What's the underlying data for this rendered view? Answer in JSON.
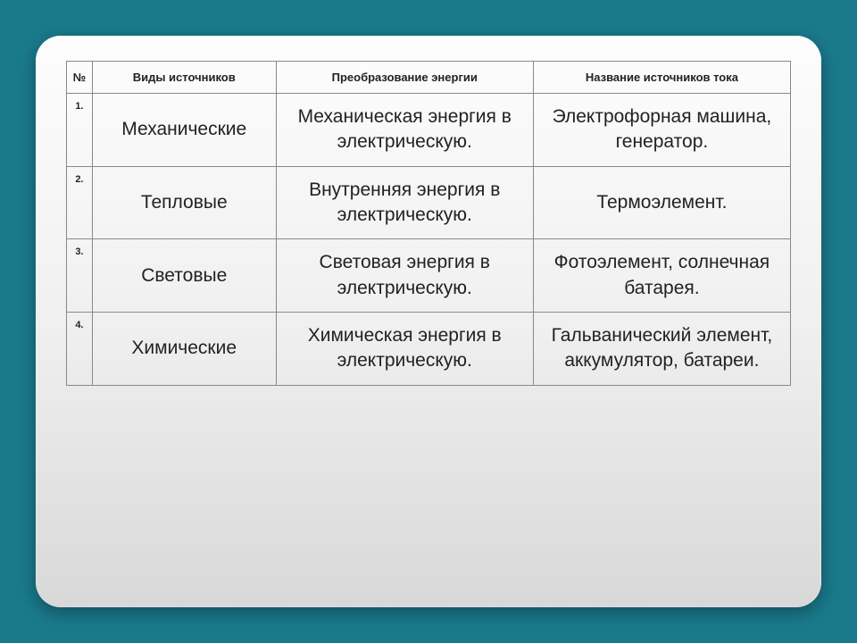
{
  "table": {
    "headers": {
      "num": "№",
      "type": "Виды источников",
      "conversion": "Преобразование энергии",
      "name": "Название источников тока"
    },
    "rows": [
      {
        "num": "1.",
        "type": "Механические",
        "conversion": "Механическая энергия в электрическую.",
        "name": "Электрофорная машина, генератор."
      },
      {
        "num": "2.",
        "type": "Тепловые",
        "conversion": "Внутренняя энергия в электрическую.",
        "name": "Термоэлемент."
      },
      {
        "num": "3.",
        "type": "Световые",
        "conversion": "Световая энергия в электрическую.",
        "name": "Фотоэлемент, солнечная батарея."
      },
      {
        "num": "4.",
        "type": "Химические",
        "conversion": "Химическая энергия в электрическую.",
        "name": "Гальванический элемент, аккумулятор, батареи."
      }
    ],
    "styling": {
      "background_gradient_top": "#fdfdfd",
      "background_gradient_bottom": "#d8d8d8",
      "frame_background": "#1a7a8c",
      "border_color": "#888888",
      "header_fontsize": 13,
      "cell_fontsize": 21,
      "num_fontsize": 11,
      "text_color": "#222222",
      "card_border_radius": 28,
      "col_widths": {
        "num": 28,
        "type": 200,
        "conversion": 280,
        "name": 280
      }
    }
  }
}
